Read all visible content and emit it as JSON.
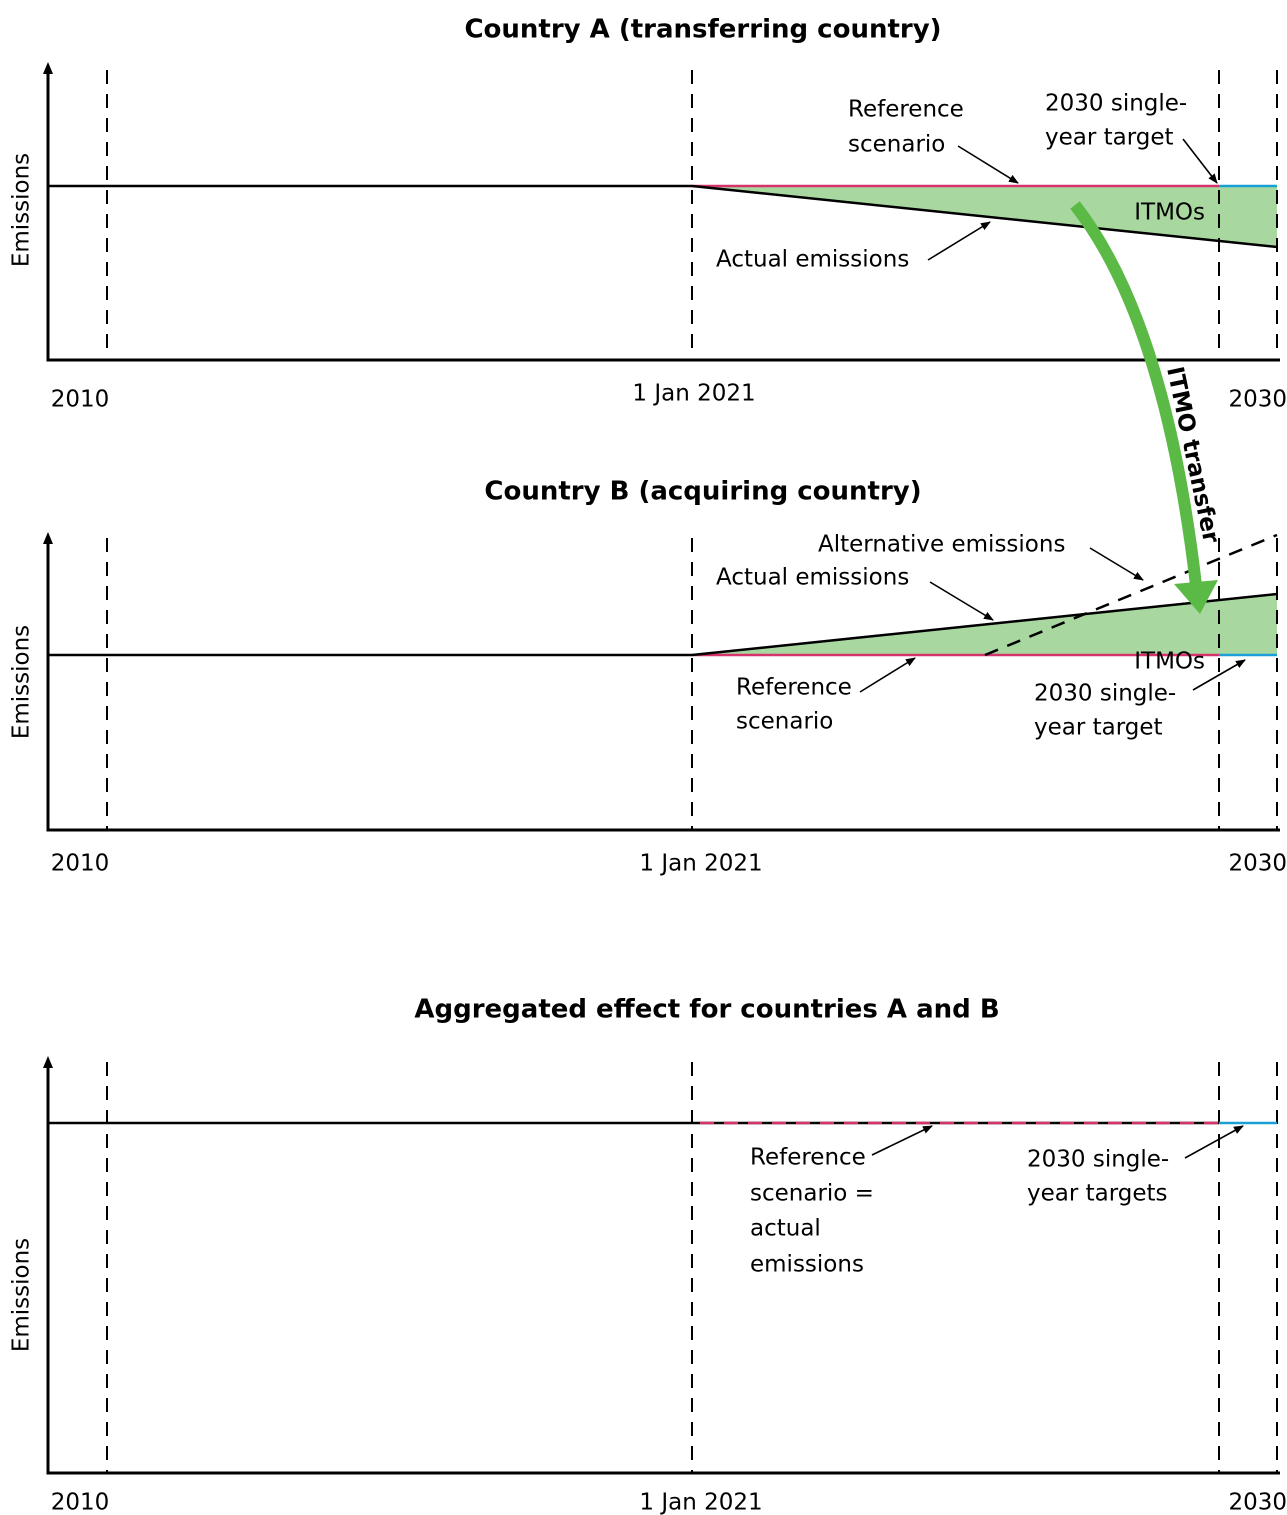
{
  "transfer_label": "ITMO transfer",
  "panels": [
    {
      "title": "Country A (transferring country)",
      "y_axis_label": "Emissions",
      "x_tick_labels": [
        "2010",
        "1 Jan 2021",
        "2030"
      ],
      "annotations": [
        [
          "Reference",
          "scenario"
        ],
        [
          "2030 single-",
          "year target"
        ],
        [
          "ITMOs"
        ],
        [
          "Actual emissions"
        ]
      ]
    },
    {
      "title": "Country B (acquiring country)",
      "y_axis_label": "Emissions",
      "x_tick_labels": [
        "2010",
        "1 Jan 2021",
        "2030"
      ],
      "annotations": [
        [
          "Alternative emissions"
        ],
        [
          "Actual emissions"
        ],
        [
          "ITMOs"
        ],
        [
          "Reference",
          "scenario"
        ],
        [
          "2030 single-",
          "year target"
        ]
      ]
    },
    {
      "title": "Aggregated effect for countries A and B",
      "y_axis_label": "Emissions",
      "x_tick_labels": [
        "2010",
        "1 Jan 2021",
        "2030"
      ],
      "annotations": [
        [
          "Reference",
          "scenario =",
          "actual",
          "emissions"
        ],
        [
          "2030 single-",
          "year targets"
        ]
      ]
    }
  ]
}
